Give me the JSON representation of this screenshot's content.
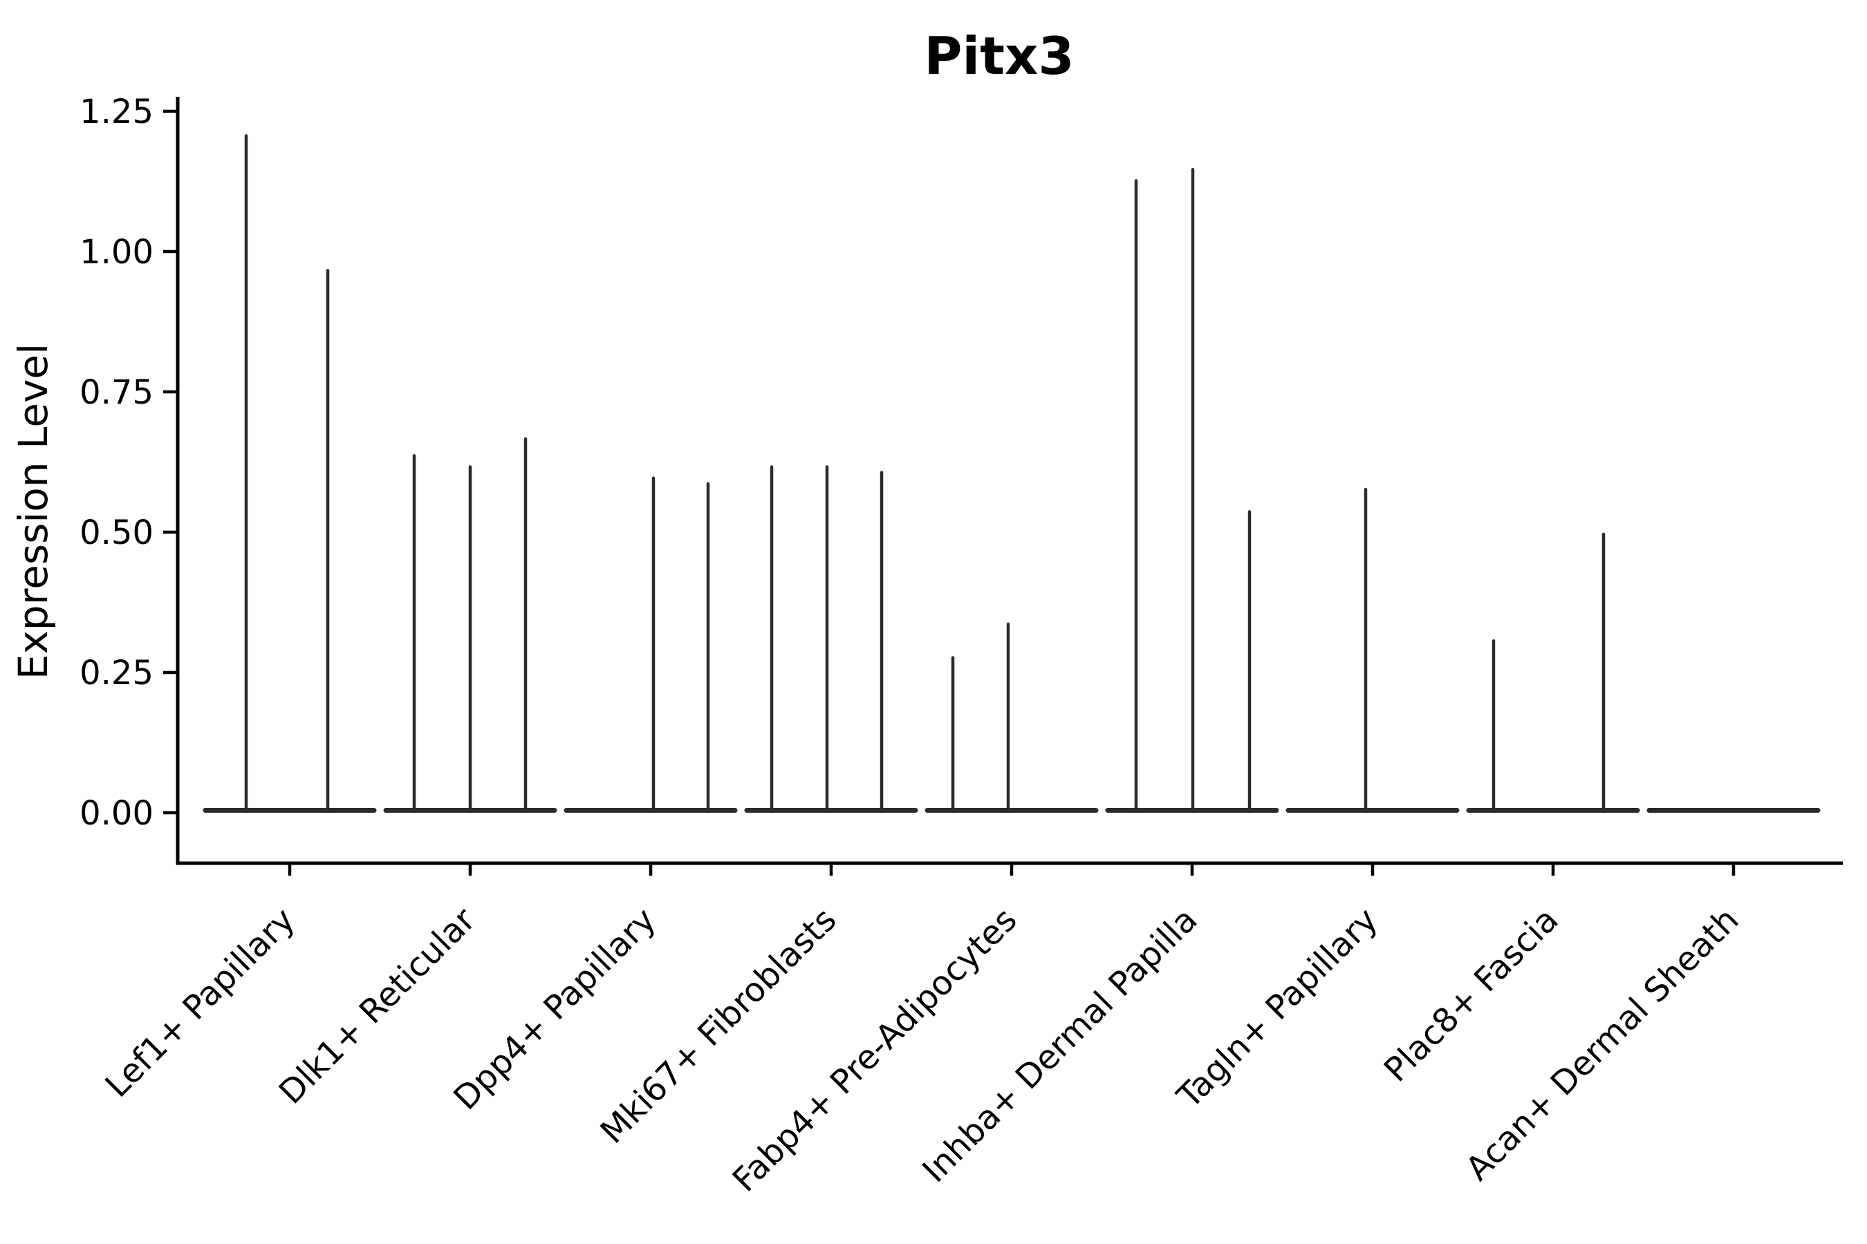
{
  "chart_data": {
    "type": "violin",
    "title": "Pitx3",
    "ylabel": "Expression Level",
    "xlabel": "",
    "ylim": [
      0,
      1.25
    ],
    "ytick_values": [
      0,
      0.25,
      0.5,
      0.75,
      1.0,
      1.25
    ],
    "ytick_labels": [
      "0.00",
      "0.25",
      "0.50",
      "0.75",
      "1.00",
      "1.25"
    ],
    "grid": false,
    "legend": null,
    "x_tick_rotation_deg": 45,
    "categories": [
      "Lef1+ Papillary",
      "Dlk1+ Reticular",
      "Dpp4+ Papillary",
      "Mki67+ Fibroblasts",
      "Fabp4+ Pre-Adipocytes",
      "Inhba+ Dermal Papilla",
      "Tagln+ Papillary",
      "Plac8+ Fascia",
      "Acan+ Dermal Sheath"
    ],
    "groups": [
      {
        "category": "Lef1+ Papillary",
        "spikes": [
          {
            "dx": -63,
            "value": 1.21
          },
          {
            "dx": 55,
            "value": 0.97
          }
        ]
      },
      {
        "category": "Dlk1+ Reticular",
        "spikes": [
          {
            "dx": -81,
            "value": 0.64
          },
          {
            "dx": 0,
            "value": 0.62
          },
          {
            "dx": 80,
            "value": 0.67
          }
        ]
      },
      {
        "category": "Dpp4+ Papillary",
        "spikes": [
          {
            "dx": 4,
            "value": 0.6
          },
          {
            "dx": 83,
            "value": 0.59
          }
        ]
      },
      {
        "category": "Mki67+ Fibroblasts",
        "spikes": [
          {
            "dx": -86,
            "value": 0.62
          },
          {
            "dx": -6,
            "value": 0.62
          },
          {
            "dx": 73,
            "value": 0.61
          }
        ]
      },
      {
        "category": "Fabp4+ Pre-Adipocytes",
        "spikes": [
          {
            "dx": -85,
            "value": 0.28
          },
          {
            "dx": -5,
            "value": 0.34
          }
        ]
      },
      {
        "category": "Inhba+ Dermal Papilla",
        "spikes": [
          {
            "dx": -81,
            "value": 1.13
          },
          {
            "dx": 1,
            "value": 1.15
          },
          {
            "dx": 83,
            "value": 0.54
          }
        ]
      },
      {
        "category": "Tagln+ Papillary",
        "spikes": [
          {
            "dx": -10,
            "value": 0.58
          }
        ]
      },
      {
        "category": "Plac8+ Fascia",
        "spikes": [
          {
            "dx": -86,
            "value": 0.31
          },
          {
            "dx": 73,
            "value": 0.5
          }
        ]
      },
      {
        "category": "Acan+ Dermal Sheath",
        "spikes": []
      }
    ],
    "colors": {
      "violin": "#2b2b2b",
      "axis": "#000000",
      "text": "#000000",
      "background": "#ffffff"
    }
  }
}
